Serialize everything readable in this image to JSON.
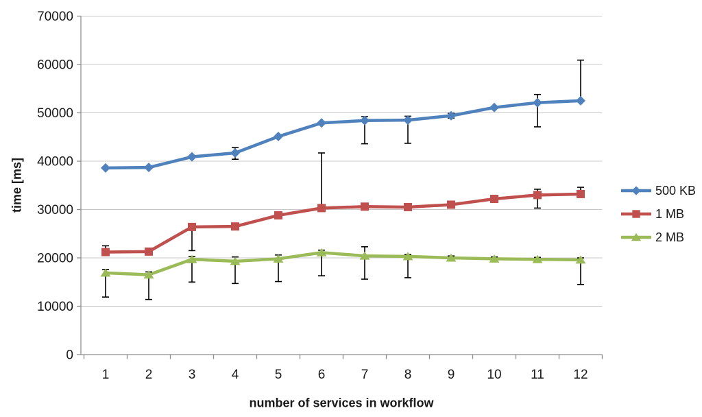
{
  "chart_data": {
    "type": "line",
    "title": "",
    "xlabel": "number of services in workflow",
    "ylabel": "time [ms]",
    "categories": [
      "1",
      "2",
      "3",
      "4",
      "5",
      "6",
      "7",
      "8",
      "9",
      "10",
      "11",
      "12"
    ],
    "ylim": [
      0,
      70000
    ],
    "yticks": [
      0,
      10000,
      20000,
      30000,
      40000,
      50000,
      60000,
      70000
    ],
    "grid": true,
    "legend_position": "right",
    "error_bar_color": "#000000",
    "axis_color": "#8E8E8E",
    "gridline_color": "#C8C8C8",
    "series": [
      {
        "name": "500 KB",
        "color": "#4F81BD",
        "marker": "diamond",
        "values": [
          38600,
          38700,
          40900,
          41700,
          45100,
          47900,
          48400,
          48500,
          49400,
          51100,
          52100,
          52500
        ],
        "err_up": [
          0,
          0,
          0,
          1100,
          0,
          0,
          800,
          800,
          500,
          0,
          1700,
          8400
        ],
        "err_down": [
          0,
          0,
          0,
          1300,
          0,
          0,
          4800,
          4800,
          500,
          0,
          5000,
          0
        ]
      },
      {
        "name": "1 MB",
        "color": "#C0504D",
        "marker": "square",
        "values": [
          21200,
          21300,
          26400,
          26500,
          28800,
          30300,
          30600,
          30500,
          31000,
          32200,
          33000,
          33200
        ],
        "err_up": [
          1300,
          0,
          0,
          0,
          0,
          11400,
          0,
          0,
          0,
          0,
          1200,
          1400
        ],
        "err_down": [
          0,
          0,
          4900,
          0,
          0,
          0,
          0,
          0,
          0,
          0,
          2700,
          0
        ]
      },
      {
        "name": "2 MB",
        "color": "#9BBB59",
        "marker": "triangle",
        "values": [
          16900,
          16500,
          19700,
          19300,
          19800,
          21100,
          20400,
          20300,
          20000,
          19800,
          19700,
          19600
        ],
        "err_up": [
          700,
          600,
          600,
          900,
          800,
          500,
          1900,
          400,
          400,
          400,
          400,
          400
        ],
        "err_down": [
          5000,
          5100,
          4700,
          4600,
          4700,
          4800,
          4800,
          4400,
          0,
          0,
          0,
          5100
        ]
      }
    ]
  }
}
